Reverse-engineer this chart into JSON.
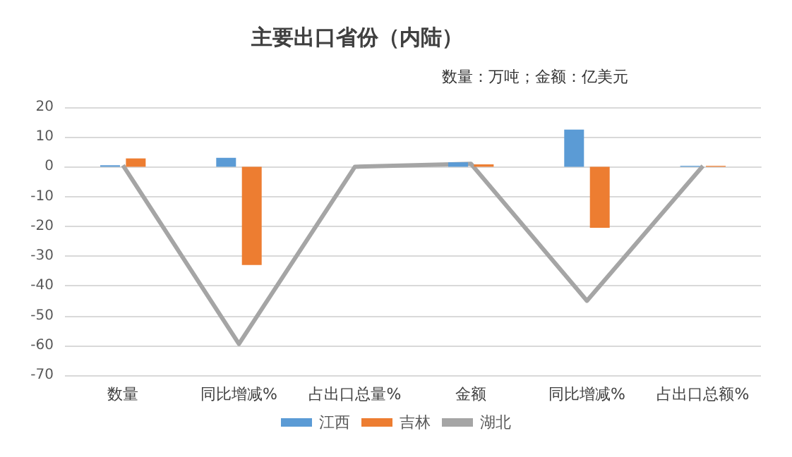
{
  "chart_data": {
    "type": "bar",
    "title": "主要出口省份（内陆）",
    "subtitle": "数量：万吨；金额：亿美元",
    "categories": [
      "数量",
      "同比增减%",
      "占出口总量%",
      "金额",
      "同比增减%",
      "占出口总额%"
    ],
    "series": [
      {
        "name": "江西",
        "color": "#5b9bd5",
        "values": [
          0.5,
          3,
          0,
          1.5,
          12.5,
          0.3
        ]
      },
      {
        "name": "吉林",
        "color": "#ed7d31",
        "values": [
          2.8,
          -33,
          0,
          0.8,
          -20.5,
          0.3
        ]
      },
      {
        "name": "湖北",
        "type": "line",
        "color": "#a5a5a5",
        "values": [
          0.5,
          -59.5,
          0,
          1,
          -45,
          0.3
        ]
      }
    ],
    "ylim": [
      -70,
      20
    ],
    "yticks": [
      -70,
      -60,
      -50,
      -40,
      -30,
      -20,
      -10,
      0,
      10,
      20
    ],
    "grid": "y",
    "legend": "bottom",
    "marker": "none"
  }
}
